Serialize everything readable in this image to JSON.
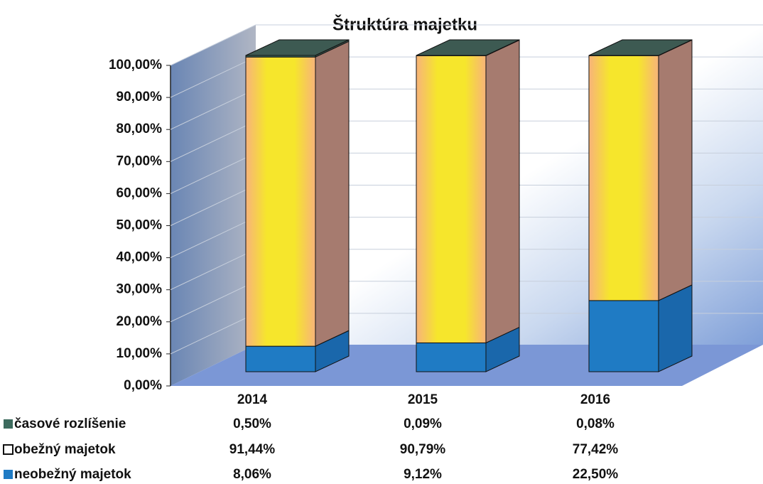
{
  "chart_data": {
    "type": "bar",
    "stacked": true,
    "title": "Štruktúra majetku",
    "categories": [
      "2014",
      "2015",
      "2016"
    ],
    "series": [
      {
        "name": "časové rozlíšenie",
        "color": "#3d6b5e",
        "values": [
          0.5,
          0.09,
          0.08
        ],
        "value_labels": [
          "0,50%",
          "0,09%",
          "0,08%"
        ]
      },
      {
        "name": "obežný majetok",
        "color": "#f5e52c",
        "values": [
          91.44,
          90.79,
          77.42
        ],
        "value_labels": [
          "91,44%",
          "90,79%",
          "77,42%"
        ]
      },
      {
        "name": "neobežný majetok",
        "color": "#1f7bc4",
        "values": [
          8.06,
          9.12,
          22.5
        ],
        "value_labels": [
          "8,06%",
          "9,12%",
          "22,50%"
        ]
      }
    ],
    "ylim": [
      0,
      100
    ],
    "yticks": [
      {
        "value": 0,
        "label": "0,00%"
      },
      {
        "value": 10,
        "label": "10,00%"
      },
      {
        "value": 20,
        "label": "20,00%"
      },
      {
        "value": 30,
        "label": "30,00%"
      },
      {
        "value": 40,
        "label": "40,00%"
      },
      {
        "value": 50,
        "label": "50,00%"
      },
      {
        "value": 60,
        "label": "60,00%"
      },
      {
        "value": 70,
        "label": "70,00%"
      },
      {
        "value": 80,
        "label": "80,00%"
      },
      {
        "value": 90,
        "label": "90,00%"
      },
      {
        "value": 100,
        "label": "100,00%"
      }
    ],
    "grid": true,
    "data_table": true
  }
}
